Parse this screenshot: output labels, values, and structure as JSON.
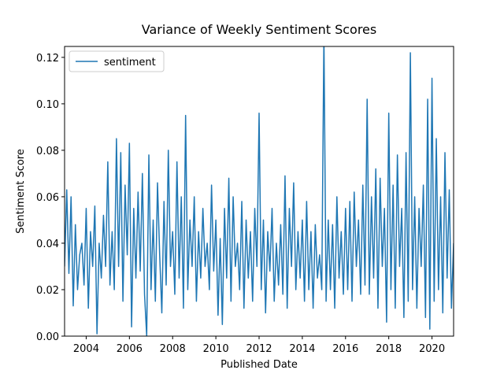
{
  "chart_data": {
    "type": "line",
    "title": "Variance of Weekly Sentiment Scores",
    "xlabel": "Published Date",
    "ylabel": "Sentiment Score",
    "legend": "upper left",
    "grid": false,
    "x": [
      2003.0,
      2003.1,
      2003.2,
      2003.3,
      2003.4,
      2003.5,
      2003.6,
      2003.7,
      2003.8,
      2003.9,
      2004.0,
      2004.1,
      2004.2,
      2004.3,
      2004.4,
      2004.5,
      2004.6,
      2004.7,
      2004.8,
      2004.9,
      2005.0,
      2005.1,
      2005.2,
      2005.3,
      2005.4,
      2005.5,
      2005.6,
      2005.7,
      2005.8,
      2005.9,
      2006.0,
      2006.1,
      2006.2,
      2006.3,
      2006.4,
      2006.5,
      2006.6,
      2006.7,
      2006.8,
      2006.9,
      2007.0,
      2007.1,
      2007.2,
      2007.3,
      2007.4,
      2007.5,
      2007.6,
      2007.7,
      2007.8,
      2007.9,
      2008.0,
      2008.1,
      2008.2,
      2008.3,
      2008.4,
      2008.5,
      2008.6,
      2008.7,
      2008.8,
      2008.9,
      2009.0,
      2009.1,
      2009.2,
      2009.3,
      2009.4,
      2009.5,
      2009.6,
      2009.7,
      2009.8,
      2009.9,
      2010.0,
      2010.1,
      2010.2,
      2010.3,
      2010.4,
      2010.5,
      2010.6,
      2010.7,
      2010.8,
      2010.9,
      2011.0,
      2011.1,
      2011.2,
      2011.3,
      2011.4,
      2011.5,
      2011.6,
      2011.7,
      2011.8,
      2011.9,
      2012.0,
      2012.1,
      2012.2,
      2012.3,
      2012.4,
      2012.5,
      2012.6,
      2012.7,
      2012.8,
      2012.9,
      2013.0,
      2013.1,
      2013.2,
      2013.3,
      2013.4,
      2013.5,
      2013.6,
      2013.7,
      2013.8,
      2013.9,
      2014.0,
      2014.1,
      2014.2,
      2014.3,
      2014.4,
      2014.5,
      2014.6,
      2014.7,
      2014.8,
      2014.9,
      2015.0,
      2015.1,
      2015.2,
      2015.3,
      2015.4,
      2015.5,
      2015.6,
      2015.7,
      2015.8,
      2015.9,
      2016.0,
      2016.1,
      2016.2,
      2016.3,
      2016.4,
      2016.5,
      2016.6,
      2016.7,
      2016.8,
      2016.9,
      2017.0,
      2017.1,
      2017.2,
      2017.3,
      2017.4,
      2017.5,
      2017.6,
      2017.7,
      2017.8,
      2017.9,
      2018.0,
      2018.1,
      2018.2,
      2018.3,
      2018.4,
      2018.5,
      2018.6,
      2018.7,
      2018.8,
      2018.9,
      2019.0,
      2019.1,
      2019.2,
      2019.3,
      2019.4,
      2019.5,
      2019.6,
      2019.7,
      2019.8,
      2019.9,
      2020.0,
      2020.1,
      2020.2,
      2020.3,
      2020.4,
      2020.5,
      2020.6,
      2020.7,
      2020.8,
      2020.9,
      2021.0
    ],
    "series": [
      {
        "name": "sentiment",
        "color": "#1f77b4",
        "values": [
          0.03,
          0.063,
          0.027,
          0.06,
          0.013,
          0.048,
          0.02,
          0.035,
          0.04,
          0.022,
          0.055,
          0.012,
          0.045,
          0.03,
          0.056,
          0.001,
          0.04,
          0.025,
          0.052,
          0.03,
          0.075,
          0.022,
          0.045,
          0.02,
          0.085,
          0.03,
          0.079,
          0.015,
          0.065,
          0.035,
          0.083,
          0.004,
          0.055,
          0.025,
          0.062,
          0.028,
          0.07,
          0.018,
          0.0,
          0.078,
          0.02,
          0.05,
          0.015,
          0.066,
          0.035,
          0.01,
          0.058,
          0.022,
          0.08,
          0.03,
          0.045,
          0.018,
          0.075,
          0.025,
          0.06,
          0.012,
          0.095,
          0.02,
          0.05,
          0.03,
          0.06,
          0.015,
          0.045,
          0.025,
          0.055,
          0.03,
          0.04,
          0.02,
          0.065,
          0.028,
          0.05,
          0.009,
          0.042,
          0.005,
          0.055,
          0.025,
          0.068,
          0.015,
          0.06,
          0.03,
          0.04,
          0.02,
          0.058,
          0.012,
          0.05,
          0.025,
          0.045,
          0.015,
          0.055,
          0.03,
          0.096,
          0.02,
          0.05,
          0.01,
          0.045,
          0.028,
          0.055,
          0.015,
          0.04,
          0.022,
          0.048,
          0.018,
          0.069,
          0.012,
          0.055,
          0.03,
          0.066,
          0.02,
          0.045,
          0.025,
          0.05,
          0.015,
          0.058,
          0.02,
          0.045,
          0.012,
          0.048,
          0.025,
          0.035,
          0.02,
          0.13,
          0.015,
          0.05,
          0.02,
          0.048,
          0.012,
          0.06,
          0.025,
          0.045,
          0.018,
          0.055,
          0.02,
          0.058,
          0.015,
          0.062,
          0.03,
          0.05,
          0.018,
          0.065,
          0.022,
          0.102,
          0.018,
          0.06,
          0.025,
          0.072,
          0.012,
          0.068,
          0.03,
          0.055,
          0.006,
          0.096,
          0.02,
          0.065,
          0.012,
          0.078,
          0.03,
          0.055,
          0.008,
          0.079,
          0.015,
          0.122,
          0.02,
          0.06,
          0.012,
          0.055,
          0.03,
          0.065,
          0.008,
          0.102,
          0.003,
          0.111,
          0.015,
          0.085,
          0.02,
          0.06,
          0.01,
          0.079,
          0.025,
          0.063,
          0.012,
          0.04
        ]
      }
    ],
    "xlim": [
      2003.0,
      2021.0
    ],
    "xticks": [
      2004,
      2006,
      2008,
      2010,
      2012,
      2014,
      2016,
      2018,
      2020
    ],
    "ylim": [
      0,
      0.1247
    ],
    "yticks": [
      {
        "value": 0,
        "label": "0.00"
      },
      {
        "value": 0.02,
        "label": "0.02"
      },
      {
        "value": 0.04,
        "label": "0.04"
      },
      {
        "value": 0.06,
        "label": "0.06"
      },
      {
        "value": 0.08,
        "label": "0.08"
      },
      {
        "value": 0.1,
        "label": "0.10"
      },
      {
        "value": 0.12,
        "label": "0.12"
      }
    ]
  }
}
